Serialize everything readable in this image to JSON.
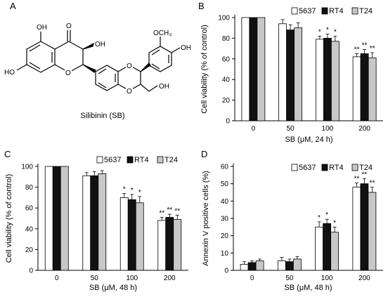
{
  "panels": {
    "a": {
      "letter": "A",
      "caption": "Silibinin (SB)"
    },
    "b": {
      "letter": "B"
    },
    "c": {
      "letter": "C"
    },
    "d": {
      "letter": "D"
    }
  },
  "structure_atoms": {
    "oh_top_ring": "OH",
    "o_ketone": "O",
    "oh_3": "OH",
    "ho_7": "HO",
    "o_ring1": "O",
    "o_dioxane1": "O",
    "o_dioxane2": "O",
    "och3": "OCH₃",
    "oh_4p": "OH",
    "oh_ch2": "OH"
  },
  "colors": {
    "5637": "#ffffff",
    "RT4": "#111111",
    "T24": "#c8c8c8",
    "outline": "#000000"
  },
  "chart_data": [
    {
      "id": "b",
      "type": "bar",
      "categories": [
        "0",
        "50",
        "100",
        "200"
      ],
      "series": [
        {
          "name": "5637",
          "values": [
            100,
            94,
            79,
            62
          ],
          "errors": [
            0,
            4,
            3,
            3
          ],
          "sig": [
            "",
            "",
            "*",
            "**"
          ]
        },
        {
          "name": "RT4",
          "values": [
            100,
            88,
            80,
            65
          ],
          "errors": [
            0,
            5,
            4,
            4
          ],
          "sig": [
            "",
            "",
            "*",
            "**"
          ]
        },
        {
          "name": "T24",
          "values": [
            100,
            90,
            77,
            61
          ],
          "errors": [
            0,
            5,
            5,
            5
          ],
          "sig": [
            "",
            "",
            "*",
            "**"
          ]
        }
      ],
      "xlabel": "SB (μM, 24 h)",
      "ylabel": "Cell viability (% of control)",
      "ylim": [
        0,
        100
      ],
      "yticks": [
        0,
        20,
        40,
        60,
        80,
        100
      ],
      "legend": "top-right",
      "grid": false
    },
    {
      "id": "c",
      "type": "bar",
      "categories": [
        "0",
        "50",
        "100",
        "200"
      ],
      "series": [
        {
          "name": "5637",
          "values": [
            100,
            91,
            70,
            48
          ],
          "errors": [
            0,
            3,
            4,
            3
          ],
          "sig": [
            "",
            "",
            "*",
            "**"
          ]
        },
        {
          "name": "RT4",
          "values": [
            100,
            91,
            68,
            51
          ],
          "errors": [
            0,
            4,
            5,
            3
          ],
          "sig": [
            "",
            "",
            "*",
            "**"
          ]
        },
        {
          "name": "T24",
          "values": [
            100,
            93,
            65,
            49
          ],
          "errors": [
            0,
            3,
            6,
            4
          ],
          "sig": [
            "",
            "",
            "*",
            "**"
          ]
        }
      ],
      "xlabel": "SB (μM, 48 h)",
      "ylabel": "Cell viability (% of control)",
      "ylim": [
        0,
        100
      ],
      "yticks": [
        0,
        20,
        40,
        60,
        80,
        100
      ],
      "legend": "top-right",
      "grid": false
    },
    {
      "id": "d",
      "type": "bar",
      "categories": [
        "0",
        "50",
        "100",
        "200"
      ],
      "series": [
        {
          "name": "5637",
          "values": [
            3.5,
            5.5,
            25,
            48
          ],
          "errors": [
            1.5,
            2,
            3,
            2.5
          ],
          "sig": [
            "",
            "",
            "*",
            "**"
          ]
        },
        {
          "name": "RT4",
          "values": [
            4.5,
            5,
            27,
            50
          ],
          "errors": [
            1,
            1.5,
            2.5,
            3
          ],
          "sig": [
            "",
            "",
            "*",
            "**"
          ]
        },
        {
          "name": "T24",
          "values": [
            5.5,
            6.5,
            22,
            45
          ],
          "errors": [
            1,
            1.5,
            3,
            3
          ],
          "sig": [
            "",
            "",
            "*",
            "**"
          ]
        }
      ],
      "xlabel": "SB (μM, 48 h)",
      "ylabel": "Annexin V positive cells (%)",
      "ylim": [
        0,
        60
      ],
      "yticks": [
        0,
        10,
        20,
        30,
        40,
        50,
        60
      ],
      "legend": "top-right",
      "grid": false
    }
  ]
}
